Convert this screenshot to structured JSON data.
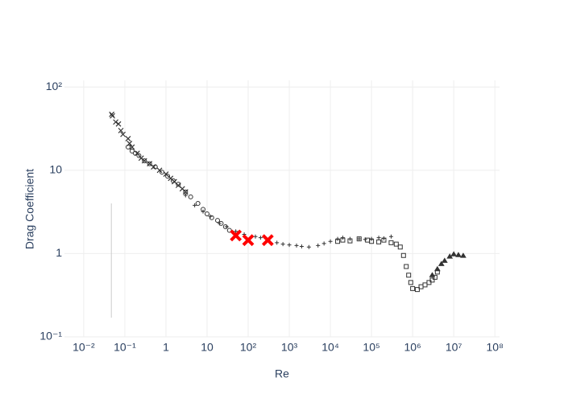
{
  "chart_data": {
    "type": "scatter",
    "x_label": "Re",
    "y_label": "Drag Coefficient",
    "xlog": true,
    "ylog": true,
    "grid": true,
    "xlim": [
      0.0034,
      130000000
    ],
    "ylim": [
      0.1,
      120
    ],
    "xticks": [
      {
        "value": 0.01,
        "label": "10⁻²"
      },
      {
        "value": 0.1,
        "label": "10⁻¹"
      },
      1,
      10,
      {
        "value": 100,
        "label": "10²"
      },
      {
        "value": 1000,
        "label": "10³"
      },
      {
        "value": 10000,
        "label": "10⁴"
      },
      {
        "value": 100000,
        "label": "10⁵"
      },
      {
        "value": 1000000,
        "label": "10⁶"
      },
      {
        "value": 10000000,
        "label": "10⁷"
      },
      {
        "value": 100000000,
        "label": "10⁸"
      }
    ],
    "yticks": [
      {
        "value": 0.1,
        "label": "10⁻¹"
      },
      1,
      10,
      {
        "value": 100,
        "label": "10²"
      }
    ],
    "series": [
      {
        "symbol": "x",
        "color": "#333333",
        "x": [
          0.048,
          0.05,
          0.06,
          0.07,
          0.08,
          0.09,
          0.12,
          0.13,
          0.15,
          0.2,
          0.25,
          0.3,
          0.4,
          0.5,
          0.7,
          1,
          1.3,
          1.6,
          2,
          2.5,
          3
        ],
        "y": [
          47,
          45,
          38,
          36,
          30,
          27,
          24,
          21,
          19,
          16,
          14,
          13,
          12,
          11,
          10,
          9,
          8,
          7.3,
          6.6,
          6,
          5.5
        ]
      },
      {
        "symbol": "circle",
        "color": "#333333",
        "x": [
          0.12,
          0.15,
          0.18,
          0.22,
          0.3,
          0.4,
          0.55,
          0.8,
          1.1,
          1.5,
          2,
          3,
          4,
          6,
          8,
          10,
          13,
          18,
          22,
          28,
          35
        ],
        "y": [
          19,
          17,
          16,
          15,
          13,
          12,
          11,
          9.5,
          8.5,
          7.5,
          6.8,
          5.5,
          4.8,
          4,
          3.4,
          3,
          2.7,
          2.5,
          2.3,
          2.1,
          1.9
        ]
      },
      {
        "symbol": "plus",
        "color": "#333333",
        "x": [
          3,
          5,
          8,
          12,
          20,
          30,
          50,
          80,
          150,
          200,
          300,
          500,
          700,
          1000,
          1500,
          2000,
          3000,
          5000,
          7000,
          10000,
          15000,
          20000,
          30000,
          50000,
          70000,
          100000,
          150000,
          200000,
          300000
        ],
        "y": [
          5,
          3.8,
          3.2,
          2.8,
          2.3,
          2.1,
          1.85,
          1.7,
          1.6,
          1.55,
          1.45,
          1.35,
          1.3,
          1.27,
          1.25,
          1.22,
          1.2,
          1.25,
          1.32,
          1.4,
          1.5,
          1.55,
          1.5,
          1.5,
          1.48,
          1.5,
          1.55,
          1.52,
          1.6
        ]
      },
      {
        "symbol": "square",
        "color": "#333333",
        "x": [
          15000,
          20000,
          30000,
          50000,
          80000,
          100000,
          150000,
          200000,
          300000,
          400000,
          500000,
          600000,
          700000,
          800000,
          900000,
          1000000,
          1300000,
          1600000,
          2000000,
          2500000,
          3000000,
          3500000,
          4000000
        ],
        "y": [
          1.4,
          1.45,
          1.42,
          1.5,
          1.45,
          1.4,
          1.38,
          1.45,
          1.35,
          1.3,
          1.2,
          0.95,
          0.7,
          0.55,
          0.45,
          0.38,
          0.37,
          0.4,
          0.42,
          0.45,
          0.48,
          0.52,
          0.6
        ]
      },
      {
        "symbol": "triangle",
        "color": "#333333",
        "x": [
          3000000,
          4000000,
          5000000,
          6000000,
          8000000,
          10000000,
          13000000,
          17000000
        ],
        "y": [
          0.55,
          0.65,
          0.75,
          0.82,
          0.92,
          0.98,
          0.96,
          0.94
        ]
      },
      {
        "symbol": "bigx",
        "color": "#ff0000",
        "x": [
          50,
          100,
          300
        ],
        "y": [
          1.65,
          1.45,
          1.45
        ]
      },
      {
        "symbol": "line",
        "color": "#cccccc",
        "x": [
          0.047,
          0.047,
          0.047,
          0.047,
          0.047
        ],
        "y": [
          0.17,
          0.4,
          1,
          2,
          4
        ]
      }
    ]
  }
}
